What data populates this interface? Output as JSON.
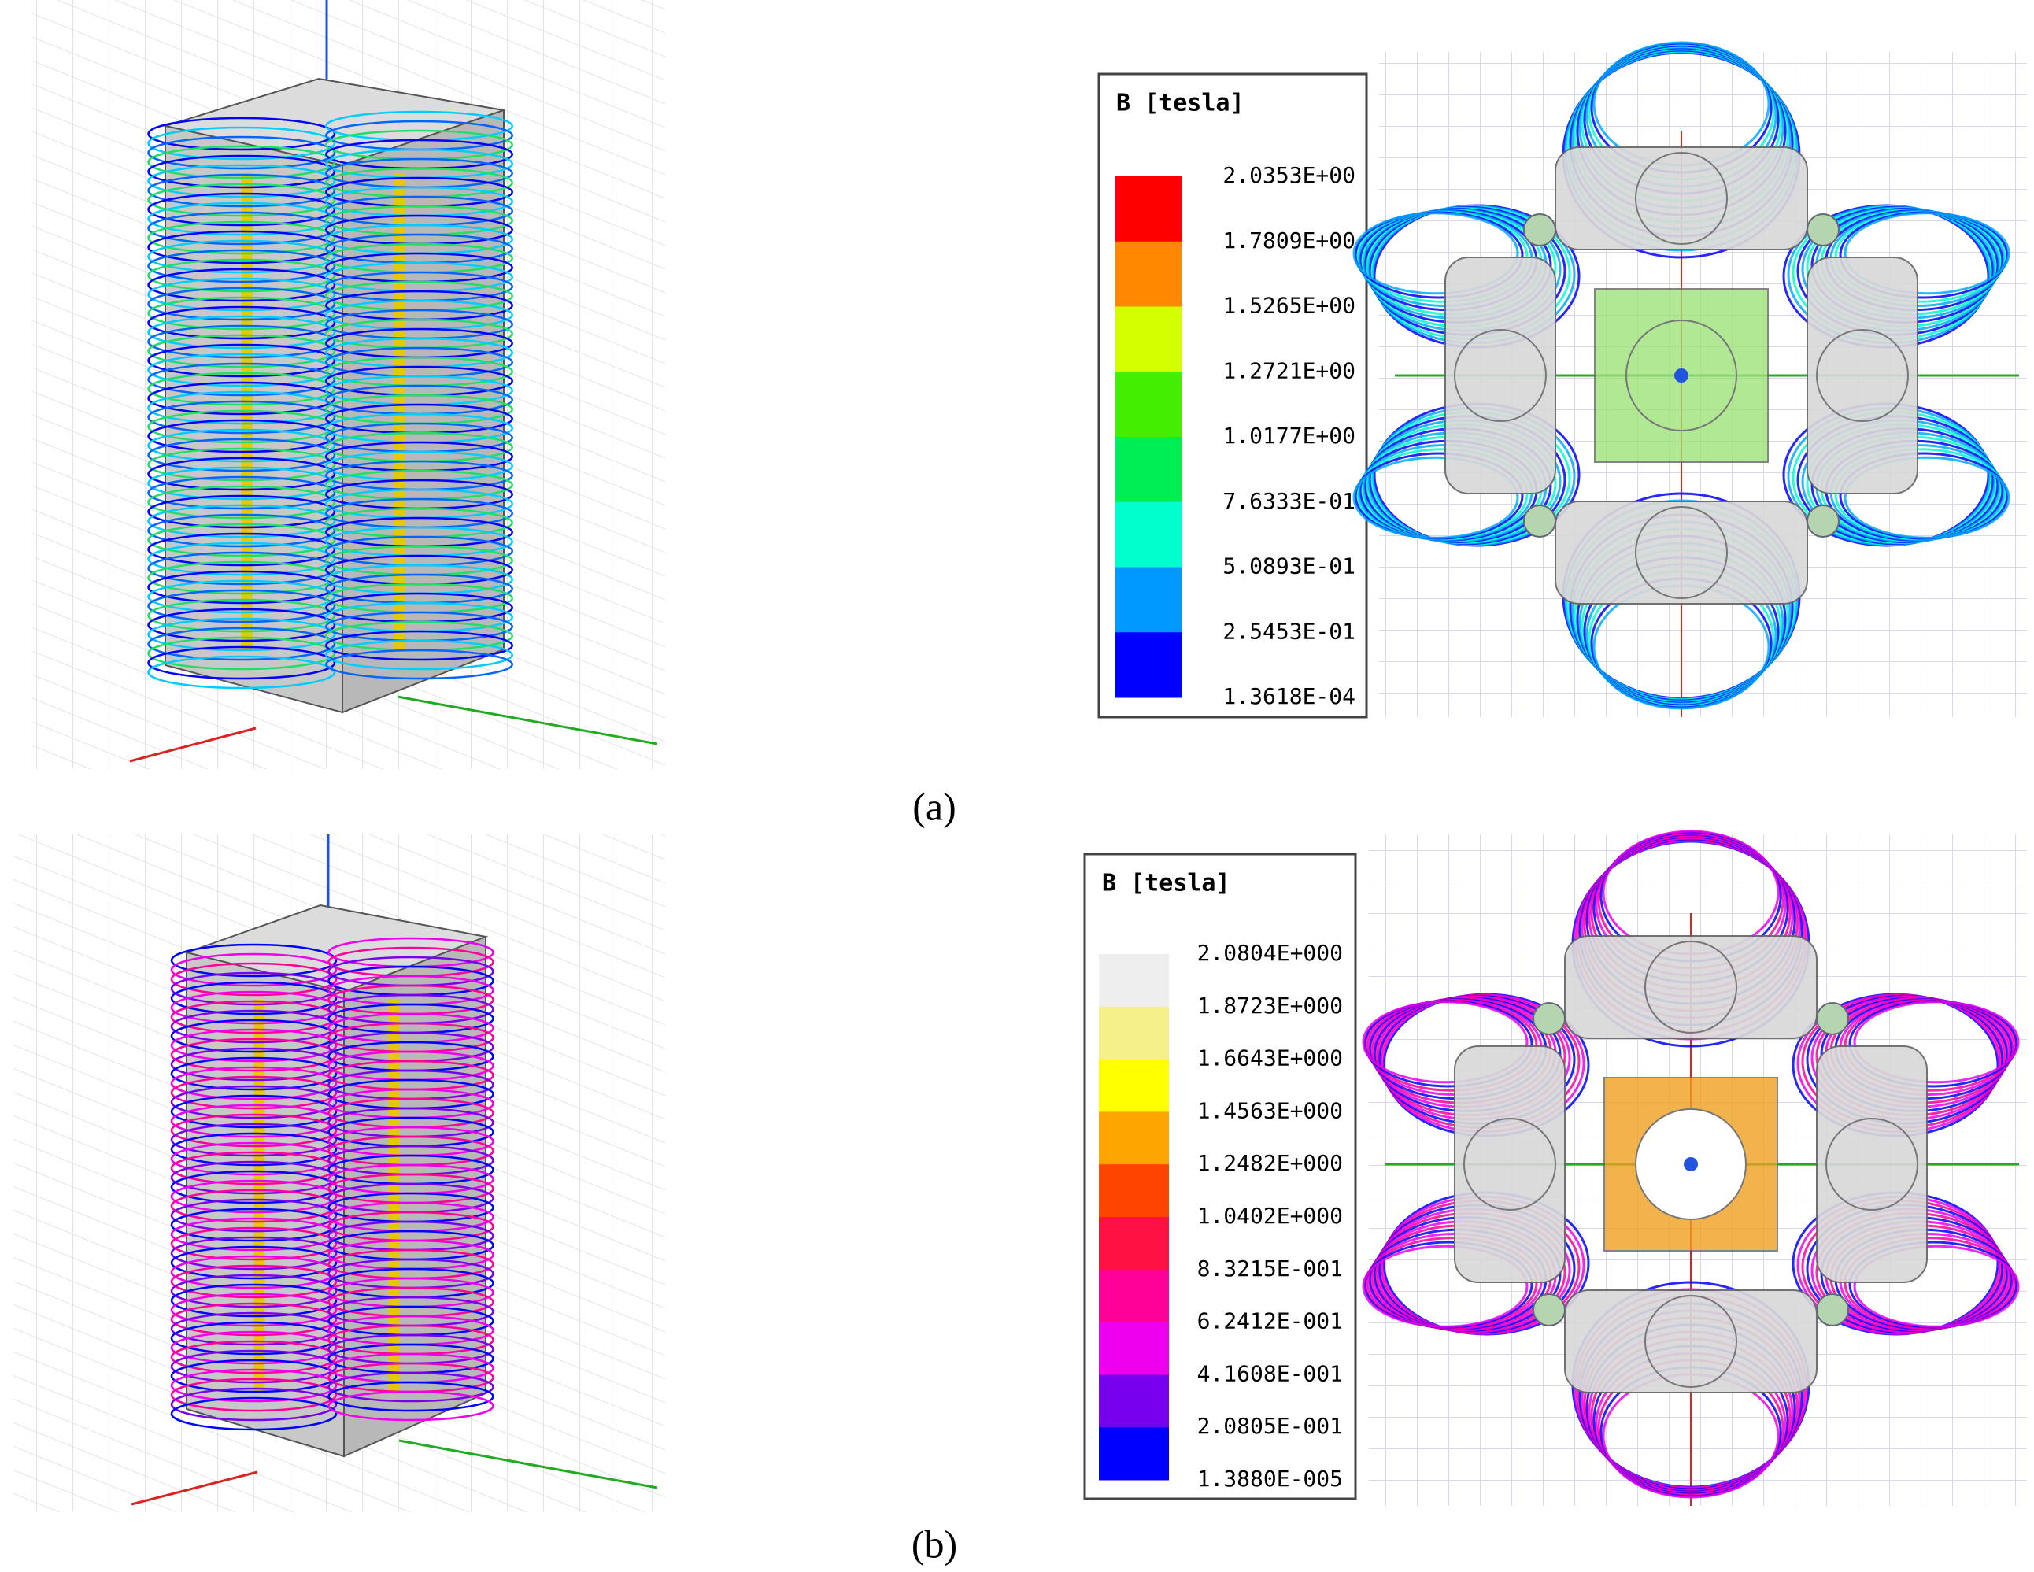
{
  "panels": [
    {
      "label": "(a)",
      "legend": {
        "title": "B [tesla]",
        "levels": [
          "2.0353E+00",
          "1.7809E+00",
          "1.5265E+00",
          "1.2721E+00",
          "1.0177E+00",
          "7.6333E-01",
          "5.0893E-01",
          "2.5453E-01",
          "1.3618E-04"
        ],
        "colors": [
          "#ff0000",
          "#ff8800",
          "#d4ff00",
          "#44ee00",
          "#00ee55",
          "#00ffcc",
          "#0099ff",
          "#0000ff"
        ]
      }
    },
    {
      "label": "(b)",
      "legend": {
        "title": "B [tesla]",
        "levels": [
          "2.0804E+000",
          "1.8723E+000",
          "1.6643E+000",
          "1.4563E+000",
          "1.2482E+000",
          "1.0402E+000",
          "8.3215E-001",
          "6.2412E-001",
          "4.1608E-001",
          "2.0805E-001",
          "1.3880E-005"
        ],
        "colors": [
          "#eeeeee",
          "#f5f08a",
          "#ffff00",
          "#ffa500",
          "#ff4400",
          "#ff1144",
          "#ff0099",
          "#ee00ee",
          "#7700ee",
          "#0000ff"
        ]
      }
    }
  ]
}
